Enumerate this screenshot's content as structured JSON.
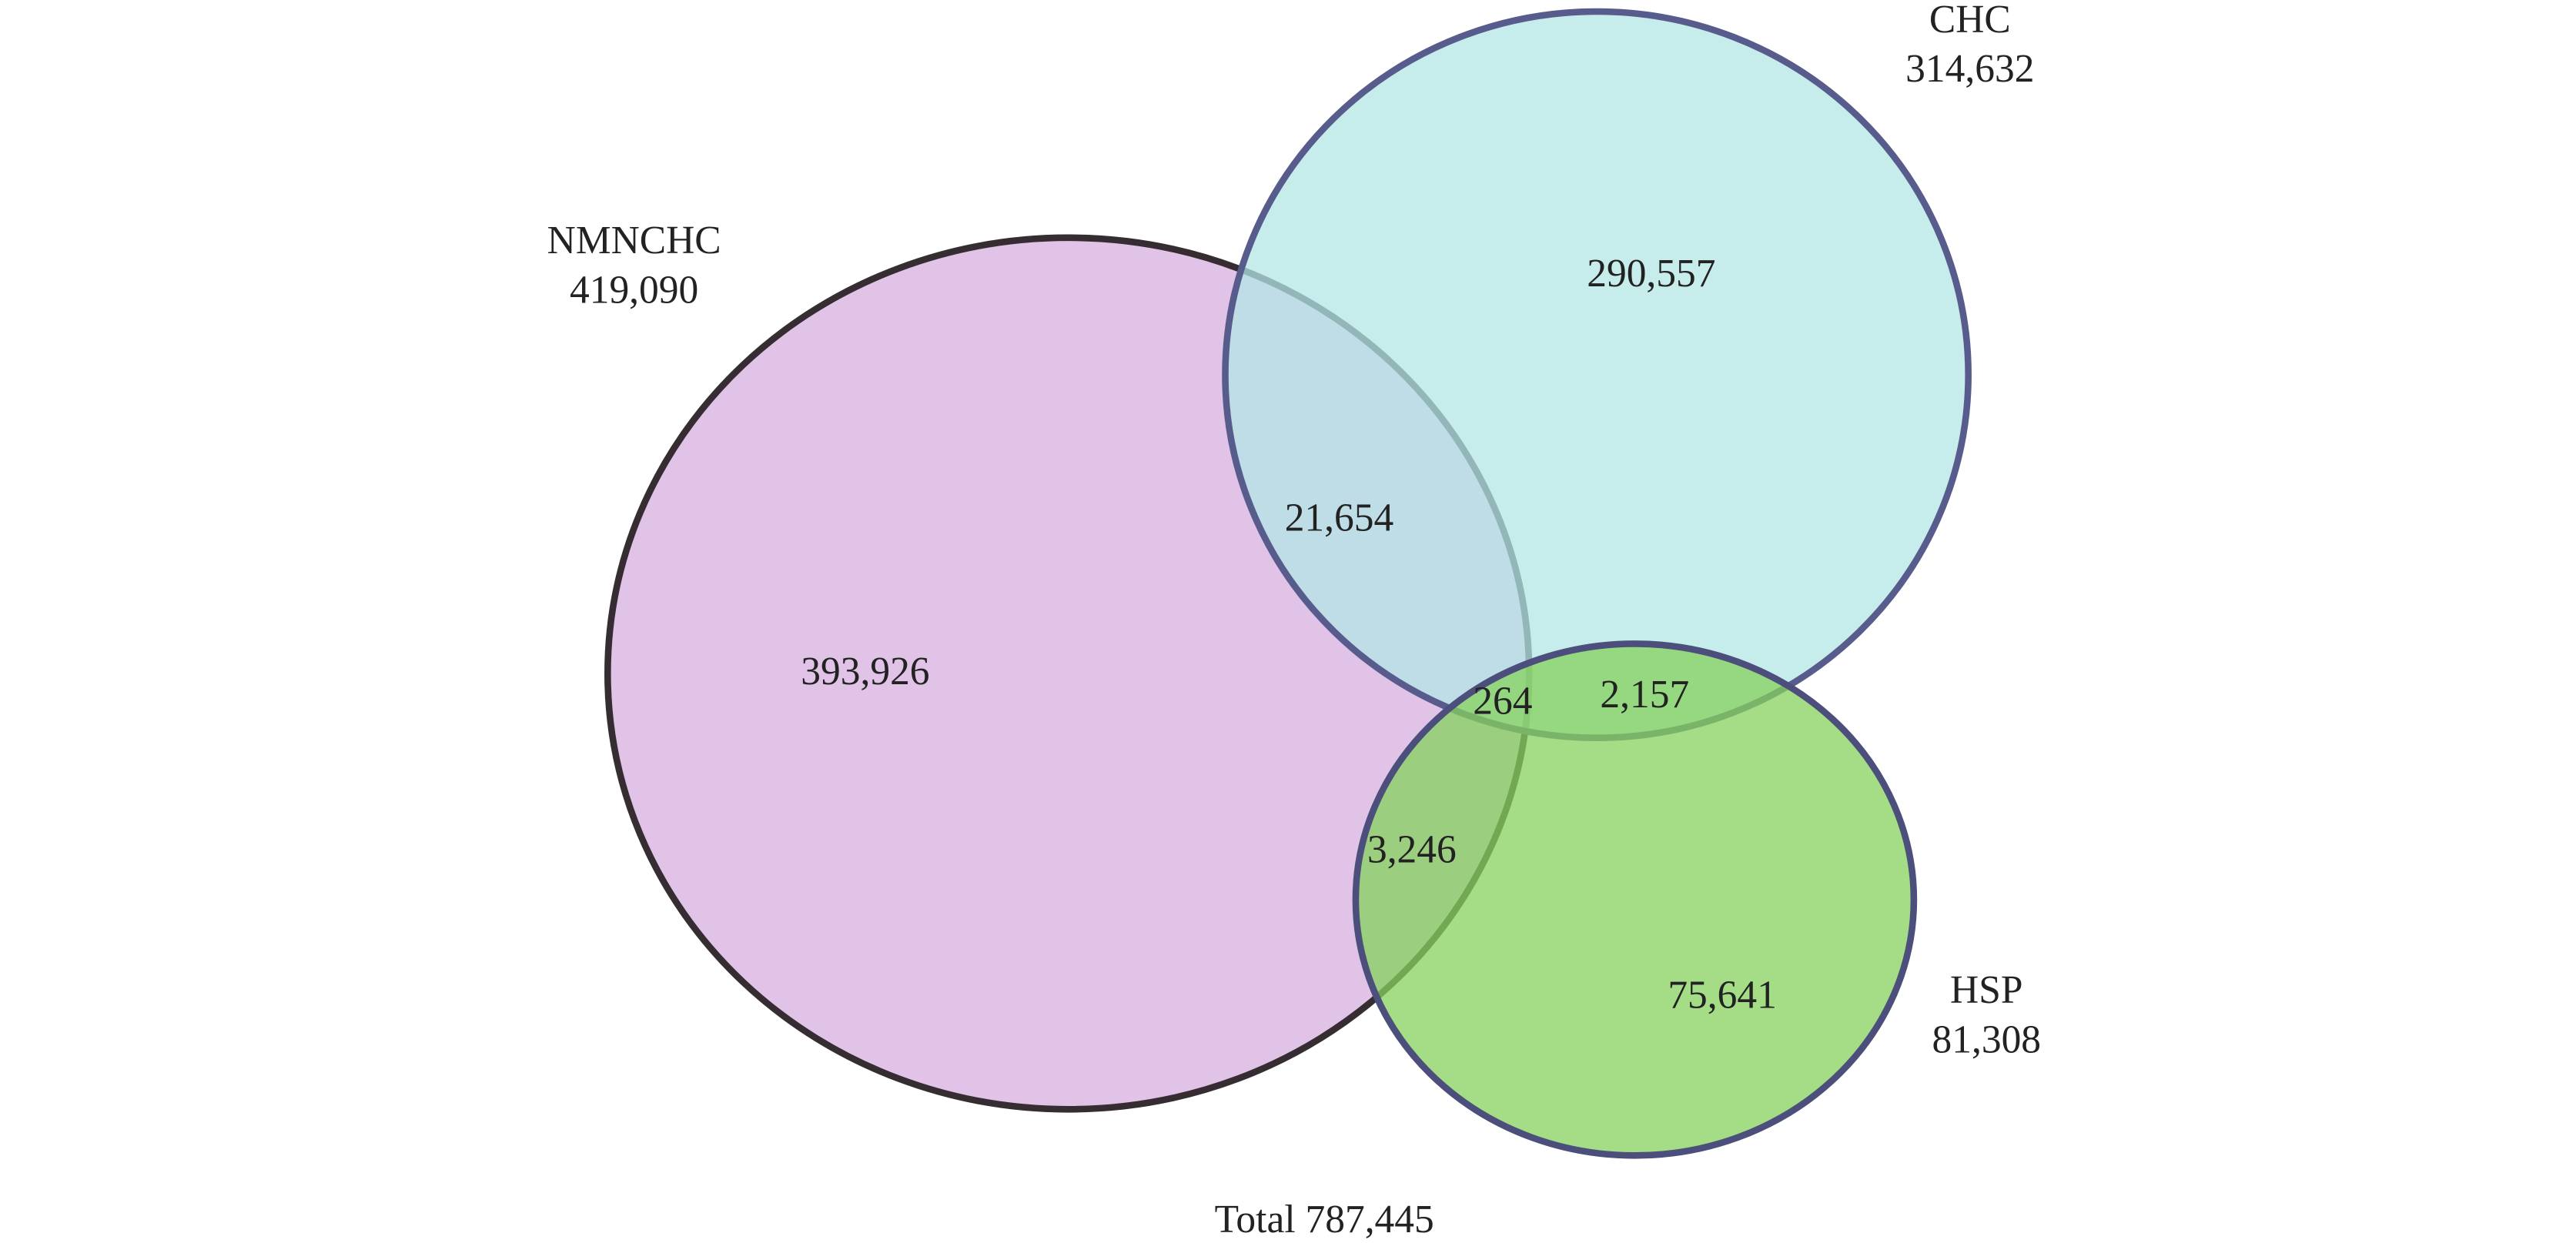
{
  "sets": [
    {
      "name": "NMNCHC",
      "total": "419,090"
    },
    {
      "name": "CHC",
      "total": "314,632"
    },
    {
      "name": "HSP",
      "total": "81,308"
    }
  ],
  "regions": {
    "nmnchc_only": "393,926",
    "chc_only": "290,557",
    "hsp_only": "75,641",
    "nmnchc_chc": "21,654",
    "nmnchc_hsp": "3,246",
    "chc_hsp": "2,157",
    "all_three": "264"
  },
  "total": "Total 787,445"
}
